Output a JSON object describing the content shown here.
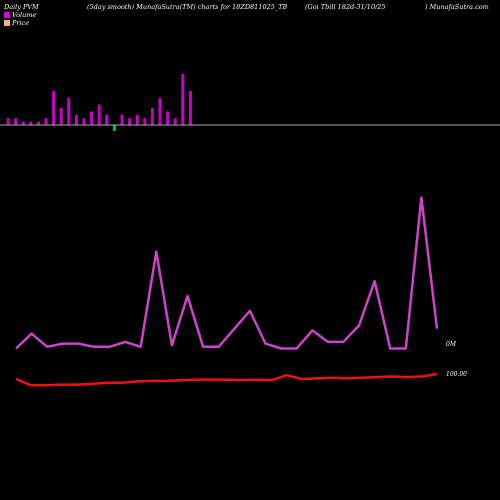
{
  "header": {
    "left": "Daily PVM",
    "center": "(5day smooth) MunafaSutra(TM) charts for 18ZD811025_TB",
    "right_a": "(Goi  Tbill 182d-31/10/25",
    "right_b": ") MunafaSutra.com"
  },
  "legend": {
    "volume_label": "Volume",
    "volume_color": "#dd00dd",
    "price_label": "Price",
    "price_color": "#ffaa88"
  },
  "chart_data": [
    {
      "type": "bar",
      "name": "volume",
      "up_color": "#cc00cc",
      "down_color": "#00cc00",
      "baseline_color": "#aaaaaa",
      "values": [
        2,
        2,
        1,
        1,
        1,
        2,
        10,
        5,
        8,
        3,
        2,
        4,
        6,
        3,
        -2,
        3,
        2,
        3,
        2,
        5,
        8,
        4,
        2,
        15,
        10
      ],
      "ylim": [
        -3,
        16
      ]
    },
    {
      "type": "line",
      "series": [
        {
          "name": "volume-smoothed",
          "color": "#cc44cc",
          "values": [
            18,
            27,
            19,
            21,
            21,
            19,
            19,
            22,
            19,
            77,
            20,
            50,
            19,
            19,
            30,
            41,
            21,
            18,
            18,
            29,
            22,
            22,
            32,
            59,
            18,
            18,
            110,
            30
          ]
        },
        {
          "name": "price",
          "color": "#ee1111",
          "values": [
            99.6,
            99.1,
            99.1,
            99.15,
            99.15,
            99.2,
            99.3,
            99.3,
            99.4,
            99.45,
            99.45,
            99.5,
            99.55,
            99.55,
            99.55,
            99.5,
            99.55,
            99.5,
            99.9,
            99.6,
            99.65,
            99.7,
            99.65,
            99.7,
            99.75,
            99.8,
            99.75,
            99.8,
            100.0
          ]
        }
      ],
      "labels": {
        "volume_axis": "0M",
        "price_axis": "100.00"
      }
    }
  ]
}
